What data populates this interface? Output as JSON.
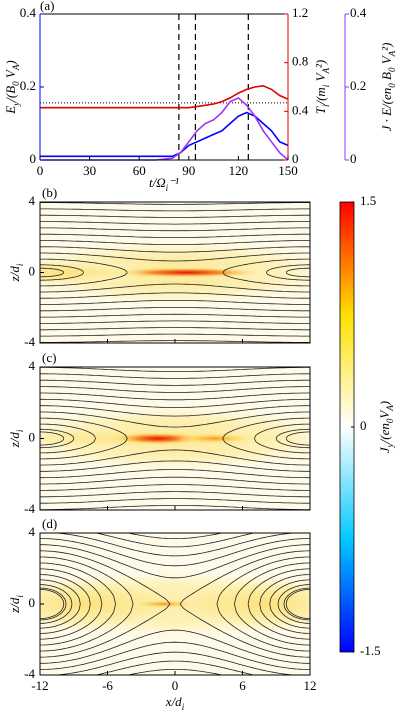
{
  "chart_data": [
    {
      "type": "line",
      "panel": "(a)",
      "x": [
        0,
        10,
        20,
        30,
        40,
        50,
        60,
        70,
        80,
        85,
        90,
        95,
        100,
        105,
        110,
        115,
        120,
        125,
        130,
        135,
        140,
        145,
        150
      ],
      "xlim": [
        0,
        150
      ],
      "xticks": [
        0,
        30,
        60,
        90,
        120,
        150
      ],
      "xlabel": [
        "t/Ω",
        "i",
        "⁻¹"
      ],
      "ylim": [
        0,
        0.4
      ],
      "yticks": [
        0,
        0.2,
        0.4
      ],
      "ylabel": [
        "E",
        "y",
        "/(B",
        "0",
        " V",
        "A",
        ")"
      ],
      "ycolor": "#0000ff",
      "y2lim": [
        0,
        1.2
      ],
      "y2ticks": [
        0,
        0.4,
        0.8,
        1.2
      ],
      "y2label": [
        "T",
        "i",
        "/(m",
        "i",
        " V",
        "A",
        "²)"
      ],
      "y2color": "#e00000",
      "y3lim": [
        0,
        0.4
      ],
      "y3ticks": [
        0,
        0.2,
        0.4
      ],
      "y3label": [
        "J · E/(en",
        "0",
        " B",
        "0",
        " V",
        "A",
        "²)"
      ],
      "y3color": "#9933ff",
      "series": [
        {
          "color": "#0000ff",
          "axis": "y",
          "values": [
            0.01,
            0.01,
            0.01,
            0.01,
            0.01,
            0.01,
            0.01,
            0.01,
            0.01,
            0.02,
            0.04,
            0.05,
            0.06,
            0.07,
            0.08,
            0.1,
            0.12,
            0.13,
            0.12,
            0.1,
            0.08,
            0.05,
            0.04
          ]
        },
        {
          "color": "#e00000",
          "axis": "y2",
          "values": [
            0.43,
            0.43,
            0.43,
            0.43,
            0.43,
            0.43,
            0.43,
            0.43,
            0.43,
            0.43,
            0.43,
            0.44,
            0.45,
            0.46,
            0.48,
            0.51,
            0.55,
            0.58,
            0.6,
            0.61,
            0.58,
            0.53,
            0.5
          ]
        },
        {
          "color": "#9933ff",
          "axis": "y3",
          "values": [
            0,
            0,
            0,
            0,
            0,
            0,
            0,
            0,
            0.005,
            0.02,
            0.05,
            0.08,
            0.1,
            0.11,
            0.13,
            0.16,
            0.17,
            0.15,
            0.12,
            0.08,
            0.05,
            0.02,
            0
          ]
        }
      ],
      "vlines": [
        84,
        94,
        126
      ],
      "hline": 0.47
    },
    {
      "type": "heatmap",
      "panel": "(b)",
      "xlim": [
        -12,
        12
      ],
      "ylim": [
        -4,
        4
      ],
      "yticks": [
        -4,
        0,
        4
      ],
      "ylabel": [
        "z/d",
        "i"
      ]
    },
    {
      "type": "heatmap",
      "panel": "(c)",
      "xlim": [
        -12,
        12
      ],
      "ylim": [
        -4,
        4
      ],
      "yticks": [
        -4,
        0,
        4
      ],
      "ylabel": [
        "z/d",
        "i"
      ]
    },
    {
      "type": "heatmap",
      "panel": "(d)",
      "xlim": [
        -12,
        12
      ],
      "ylim": [
        -4,
        4
      ],
      "yticks": [
        -4,
        0,
        4
      ],
      "ylabel": [
        "z/d",
        "i"
      ],
      "xticks": [
        -12,
        -6,
        0,
        6,
        12
      ],
      "xlabel": [
        "x/d",
        "i"
      ]
    },
    {
      "type": "colorbar",
      "clim": [
        -1.5,
        1.5
      ],
      "cticks": [
        -1.5,
        0,
        1.5
      ],
      "label": [
        "J",
        "y",
        "/(en",
        "0",
        "V",
        "A",
        ")"
      ],
      "colors": [
        "#0000ff",
        "#00c8ff",
        "#ffffff",
        "#ffe000",
        "#ff0000"
      ]
    }
  ]
}
